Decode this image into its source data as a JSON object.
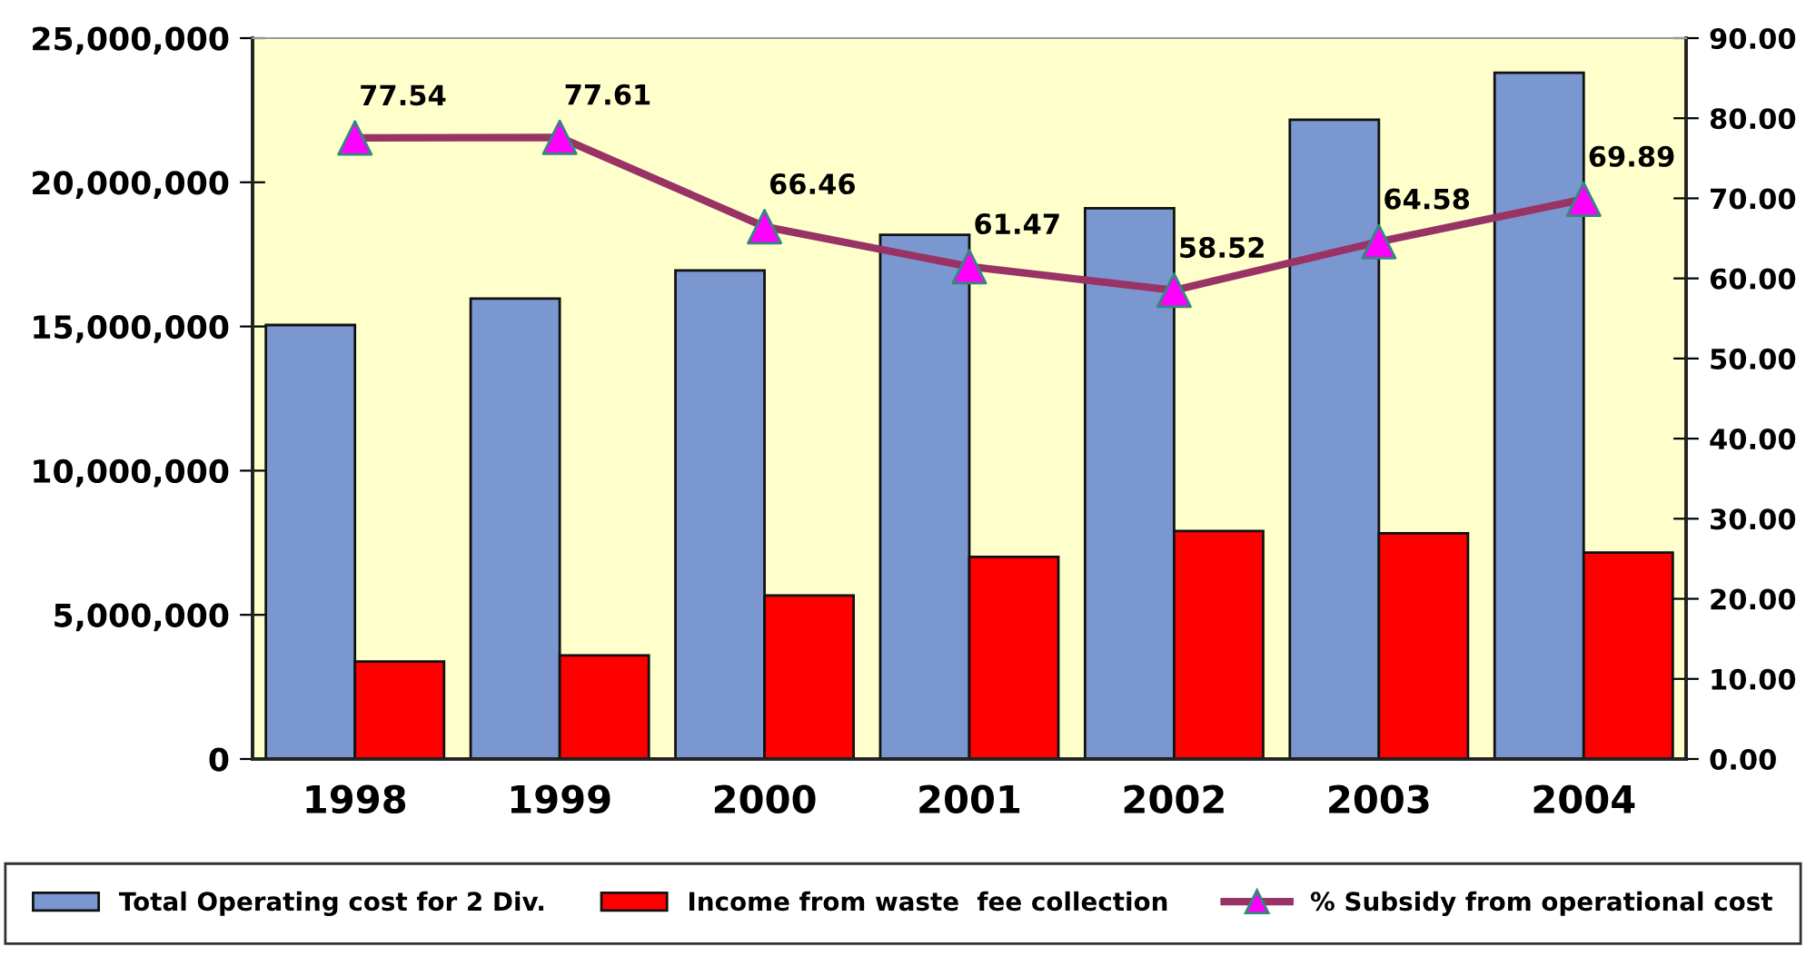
{
  "chart_data": {
    "type": "bar",
    "categories": [
      "1998",
      "1999",
      "2000",
      "2001",
      "2002",
      "2003",
      "2004"
    ],
    "series": [
      {
        "name": "Total Operating cost for 2 Div.",
        "color": "#7b97cf",
        "values": [
          15050000,
          15970000,
          16940000,
          18180000,
          19100000,
          22170000,
          23800000
        ]
      },
      {
        "name": "Income from waste  fee collection",
        "color": "#ff0000",
        "values": [
          3380000,
          3590000,
          5670000,
          7010000,
          7910000,
          7830000,
          7160000
        ]
      },
      {
        "name": "% Subsidy from operational cost",
        "type": "line",
        "axis": "y2",
        "marker": "triangle",
        "color": "#993366",
        "colors": [
          "#ff00ff",
          "#ff00ff",
          "#ff00ff",
          "#ff00ff",
          "#ff00ff",
          "#ff00ff",
          "#ff00ff"
        ],
        "values": [
          77.54,
          77.61,
          66.46,
          61.47,
          58.52,
          64.58,
          69.89
        ],
        "value_labels": [
          "77.54",
          "77.61",
          "66.46",
          "61.47",
          "58.52",
          "64.58",
          "69.89"
        ]
      }
    ],
    "ylim": [
      0,
      25000000
    ],
    "yticks": [
      0,
      {
        "value": 5000000,
        "label": "5,000,000"
      },
      {
        "value": 10000000,
        "label": "10,000,000"
      },
      {
        "value": 15000000,
        "label": "15,000,000"
      },
      {
        "value": 20000000,
        "label": "20,000,000"
      },
      {
        "value": 25000000,
        "label": "25,000,000"
      }
    ],
    "y2lim": [
      0,
      90
    ],
    "y2ticks": [
      {
        "value": 0,
        "label": "0.00"
      },
      {
        "value": 10,
        "label": "10.00"
      },
      {
        "value": 20,
        "label": "20.00"
      },
      {
        "value": 30,
        "label": "30.00"
      },
      {
        "value": 40,
        "label": "40.00"
      },
      {
        "value": 50,
        "label": "50.00"
      },
      {
        "value": 60,
        "label": "60.00"
      },
      {
        "value": 70,
        "label": "70.00"
      },
      {
        "value": 80,
        "label": "80.00"
      },
      {
        "value": 90,
        "label": "90.00"
      }
    ],
    "legend": "bottom",
    "grid": false
  }
}
